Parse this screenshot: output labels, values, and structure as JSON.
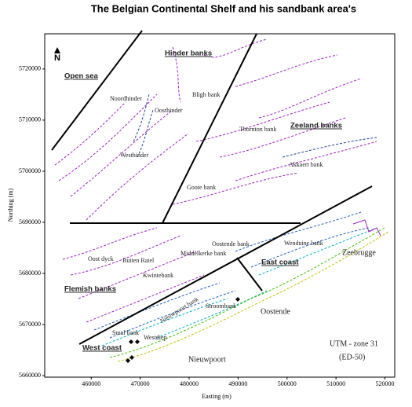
{
  "title": "The Belgian Continental Shelf and his sandbank area's",
  "north_arrow": "N",
  "x_axis": {
    "label": "Easting (m)",
    "lim": [
      450500,
      522000
    ],
    "ticks": [
      460000,
      470000,
      480000,
      490000,
      500000,
      510000,
      520000
    ]
  },
  "y_axis": {
    "label": "Northing (m)",
    "lim": [
      5659700,
      5726900
    ],
    "ticks": [
      5660000,
      5670000,
      5680000,
      5690000,
      5700000,
      5710000,
      5720000
    ]
  },
  "map_labels": [
    "Open sea",
    "Hinder banks",
    "Zeeland banks",
    "East coast",
    "Flemish banks",
    "West coast",
    "Noordhinder",
    "Oosthinder",
    "Bligh bank",
    "Westhinder",
    "Thornton bank",
    "Akkaert bank",
    "Goote bank",
    "Oostende bank",
    "Wenduine bank",
    "Oost dyck",
    "Buiten Ratel",
    "Middelkerke bank",
    "Kwintebank",
    "Stroombank",
    "Nieuwpoort bank",
    "Smal bank",
    "Westdiep",
    "Zeebrugge",
    "Oostende",
    "Nieuwpoort",
    "UTM - zone 31",
    "(ED-50)"
  ]
}
